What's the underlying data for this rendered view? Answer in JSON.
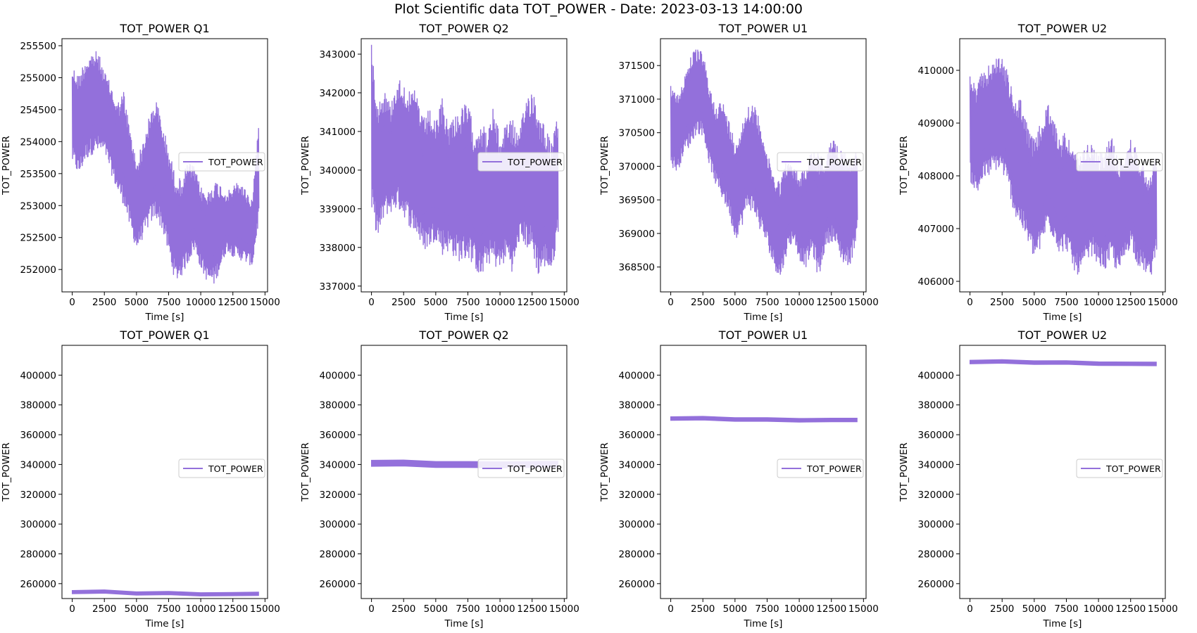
{
  "figure": {
    "suptitle": "Plot Scientific data TOT_POWER - Date: 2023-03-13 14:00:00",
    "line_color": "#9370DB"
  },
  "chart_data": [
    {
      "type": "line",
      "title": "TOT_POWER Q1",
      "xlabel": "Time [s]",
      "ylabel": "TOT_POWER",
      "xlim": [
        -800,
        15200
      ],
      "ylim": [
        251650,
        255610
      ],
      "xticks": [
        0,
        2500,
        5000,
        7500,
        10000,
        12500,
        15000
      ],
      "yticks": [
        252000,
        252500,
        253000,
        253500,
        254000,
        254500,
        255000,
        255500
      ],
      "legend": "TOT_POWER",
      "legend_loc": "center right",
      "series": [
        {
          "name": "TOT_POWER",
          "x": [
            0,
            500,
            1000,
            1500,
            2000,
            2500,
            3000,
            3500,
            4000,
            4500,
            5000,
            5500,
            6000,
            6500,
            7000,
            7500,
            8000,
            8500,
            9000,
            9500,
            10000,
            10500,
            11000,
            11500,
            12000,
            12500,
            13000,
            13500,
            14000,
            14500
          ],
          "max": [
            255200,
            255050,
            255300,
            255400,
            255420,
            255100,
            254900,
            254600,
            254800,
            254200,
            253700,
            254000,
            254400,
            254700,
            254300,
            253900,
            253500,
            253400,
            253700,
            253600,
            253300,
            253200,
            253400,
            253350,
            253200,
            253300,
            253400,
            253250,
            253100,
            254350
          ],
          "min": [
            253650,
            253450,
            253700,
            253800,
            253820,
            253800,
            253500,
            253200,
            253000,
            252600,
            252300,
            252500,
            252700,
            252800,
            252600,
            252200,
            251800,
            251900,
            252100,
            252300,
            252000,
            251800,
            251750,
            252000,
            252300,
            252200,
            252150,
            252100,
            252050,
            252750
          ]
        }
      ]
    },
    {
      "type": "line",
      "title": "TOT_POWER Q2",
      "xlabel": "Time [s]",
      "ylabel": "TOT_POWER",
      "xlim": [
        -800,
        15200
      ],
      "ylim": [
        336850,
        343400
      ],
      "xticks": [
        0,
        2500,
        5000,
        7500,
        10000,
        12500,
        15000
      ],
      "yticks": [
        337000,
        338000,
        339000,
        340000,
        341000,
        342000,
        343000
      ],
      "legend": "TOT_POWER",
      "legend_loc": "center right",
      "series": [
        {
          "name": "TOT_POWER",
          "x": [
            0,
            500,
            1000,
            1500,
            2000,
            2500,
            3000,
            3500,
            4000,
            4500,
            5000,
            5500,
            6000,
            6500,
            7000,
            7500,
            8000,
            8500,
            9000,
            9500,
            10000,
            10500,
            11000,
            11500,
            12000,
            12500,
            13000,
            13500,
            14000,
            14500
          ],
          "max": [
            343250,
            341800,
            342100,
            341700,
            342400,
            342300,
            342000,
            342100,
            341300,
            341600,
            341200,
            341900,
            341200,
            341500,
            341600,
            341800,
            341000,
            341400,
            340900,
            341700,
            340800,
            341400,
            341300,
            340900,
            341900,
            342200,
            341600,
            341200,
            340700,
            341400
          ],
          "min": [
            338800,
            338200,
            338800,
            338900,
            339000,
            338800,
            338500,
            338300,
            337900,
            338000,
            338200,
            337800,
            337900,
            337700,
            337600,
            337700,
            337500,
            337100,
            337600,
            337500,
            337400,
            337700,
            337300,
            338200,
            338000,
            337800,
            337200,
            337500,
            337300,
            338400
          ]
        }
      ]
    },
    {
      "type": "line",
      "title": "TOT_POWER U1",
      "xlabel": "Time [s]",
      "ylabel": "TOT_POWER",
      "xlim": [
        -800,
        15200
      ],
      "ylim": [
        368130,
        371900
      ],
      "xticks": [
        0,
        2500,
        5000,
        7500,
        10000,
        12500,
        15000
      ],
      "yticks": [
        368500,
        369000,
        369500,
        370000,
        370500,
        371000,
        371500
      ],
      "legend": "TOT_POWER",
      "legend_loc": "center right",
      "series": [
        {
          "name": "TOT_POWER",
          "x": [
            0,
            500,
            1000,
            1500,
            2000,
            2500,
            3000,
            3500,
            4000,
            4500,
            5000,
            5500,
            6000,
            6500,
            7000,
            7500,
            8000,
            8500,
            9000,
            9500,
            10000,
            10500,
            11000,
            11500,
            12000,
            12500,
            13000,
            13500,
            14000,
            14500
          ],
          "max": [
            371250,
            371050,
            371300,
            371650,
            371750,
            371700,
            371200,
            370900,
            371000,
            370700,
            370400,
            370600,
            370950,
            370900,
            370700,
            370200,
            369900,
            369800,
            370100,
            370000,
            369900,
            370000,
            370300,
            370200,
            370100,
            370400,
            370350,
            370250,
            370100,
            370300
          ],
          "min": [
            370000,
            369900,
            370200,
            370300,
            370500,
            370450,
            370000,
            369700,
            369500,
            369300,
            368900,
            369100,
            369400,
            369250,
            369000,
            368800,
            368500,
            368300,
            368700,
            368900,
            368600,
            368500,
            368700,
            368300,
            368800,
            368900,
            368700,
            368500,
            368550,
            369000
          ]
        }
      ]
    },
    {
      "type": "line",
      "title": "TOT_POWER U2",
      "xlabel": "Time [s]",
      "ylabel": "TOT_POWER",
      "xlim": [
        -800,
        15200
      ],
      "ylim": [
        405800,
        410600
      ],
      "xticks": [
        0,
        2500,
        5000,
        7500,
        10000,
        12500,
        15000
      ],
      "yticks": [
        406000,
        407000,
        408000,
        409000,
        410000
      ],
      "legend": "TOT_POWER",
      "legend_loc": "center right",
      "series": [
        {
          "name": "TOT_POWER",
          "x": [
            0,
            500,
            1000,
            1500,
            2000,
            2500,
            3000,
            3500,
            4000,
            4500,
            5000,
            5500,
            6000,
            6500,
            7000,
            7500,
            8000,
            8500,
            9000,
            9500,
            10000,
            10500,
            11000,
            11500,
            12000,
            12500,
            13000,
            13500,
            14000,
            14500
          ],
          "max": [
            409900,
            409700,
            410000,
            410100,
            410250,
            410300,
            409900,
            409400,
            409500,
            408900,
            408700,
            409000,
            409400,
            409100,
            408700,
            408900,
            408500,
            408300,
            408600,
            408600,
            408400,
            408500,
            408800,
            408300,
            408400,
            408700,
            408500,
            408200,
            408000,
            408500
          ],
          "min": [
            407900,
            407600,
            407900,
            408000,
            408100,
            408050,
            407700,
            407200,
            407000,
            406700,
            406400,
            406600,
            407000,
            406800,
            406500,
            406600,
            406200,
            406100,
            406300,
            406500,
            406300,
            406200,
            406400,
            406100,
            406400,
            406700,
            406300,
            406200,
            406000,
            406600
          ]
        }
      ]
    },
    {
      "type": "line",
      "title": "TOT_POWER Q1",
      "xlabel": "Time [s]",
      "ylabel": "TOT_POWER",
      "xlim": [
        -800,
        15200
      ],
      "ylim": [
        250000,
        420000
      ],
      "xticks": [
        0,
        2500,
        5000,
        7500,
        10000,
        12500,
        15000
      ],
      "yticks": [
        260000,
        280000,
        300000,
        320000,
        340000,
        360000,
        380000,
        400000
      ],
      "legend": "TOT_POWER",
      "legend_loc": "center right",
      "series": [
        {
          "name": "TOT_POWER",
          "x": [
            0,
            2500,
            5000,
            7500,
            10000,
            12500,
            14500
          ],
          "y": [
            254300,
            254700,
            253400,
            253700,
            252800,
            253000,
            253200
          ],
          "band": 2200
        }
      ]
    },
    {
      "type": "line",
      "title": "TOT_POWER Q2",
      "xlabel": "Time [s]",
      "ylabel": "TOT_POWER",
      "xlim": [
        -800,
        15200
      ],
      "ylim": [
        250000,
        420000
      ],
      "xticks": [
        0,
        2500,
        5000,
        7500,
        10000,
        12500,
        15000
      ],
      "yticks": [
        260000,
        280000,
        300000,
        320000,
        340000,
        360000,
        380000,
        400000
      ],
      "legend": "TOT_POWER",
      "legend_loc": "center right",
      "series": [
        {
          "name": "TOT_POWER",
          "x": [
            0,
            2500,
            5000,
            7500,
            10000,
            12500,
            14500
          ],
          "y": [
            340800,
            341000,
            340000,
            340000,
            339800,
            340000,
            340200
          ],
          "band": 4000
        }
      ]
    },
    {
      "type": "line",
      "title": "TOT_POWER U1",
      "xlabel": "Time [s]",
      "ylabel": "TOT_POWER",
      "xlim": [
        -800,
        15200
      ],
      "ylim": [
        250000,
        420000
      ],
      "xticks": [
        0,
        2500,
        5000,
        7500,
        10000,
        12500,
        15000
      ],
      "yticks": [
        260000,
        280000,
        300000,
        320000,
        340000,
        360000,
        380000,
        400000
      ],
      "legend": "TOT_POWER",
      "legend_loc": "center right",
      "series": [
        {
          "name": "TOT_POWER",
          "x": [
            0,
            2500,
            5000,
            7500,
            10000,
            12500,
            14500
          ],
          "y": [
            370800,
            371100,
            370200,
            370200,
            369700,
            369900,
            369900
          ],
          "band": 2400
        }
      ]
    },
    {
      "type": "line",
      "title": "TOT_POWER U2",
      "xlabel": "Time [s]",
      "ylabel": "TOT_POWER",
      "xlim": [
        -800,
        15200
      ],
      "ylim": [
        250000,
        420000
      ],
      "xticks": [
        0,
        2500,
        5000,
        7500,
        10000,
        12500,
        15000
      ],
      "yticks": [
        260000,
        280000,
        300000,
        320000,
        340000,
        360000,
        380000,
        400000
      ],
      "legend": "TOT_POWER",
      "legend_loc": "center right",
      "series": [
        {
          "name": "TOT_POWER",
          "x": [
            0,
            2500,
            5000,
            7500,
            10000,
            12500,
            14500
          ],
          "y": [
            408800,
            409200,
            408400,
            408500,
            407700,
            407600,
            407500
          ],
          "band": 2400
        }
      ]
    }
  ]
}
